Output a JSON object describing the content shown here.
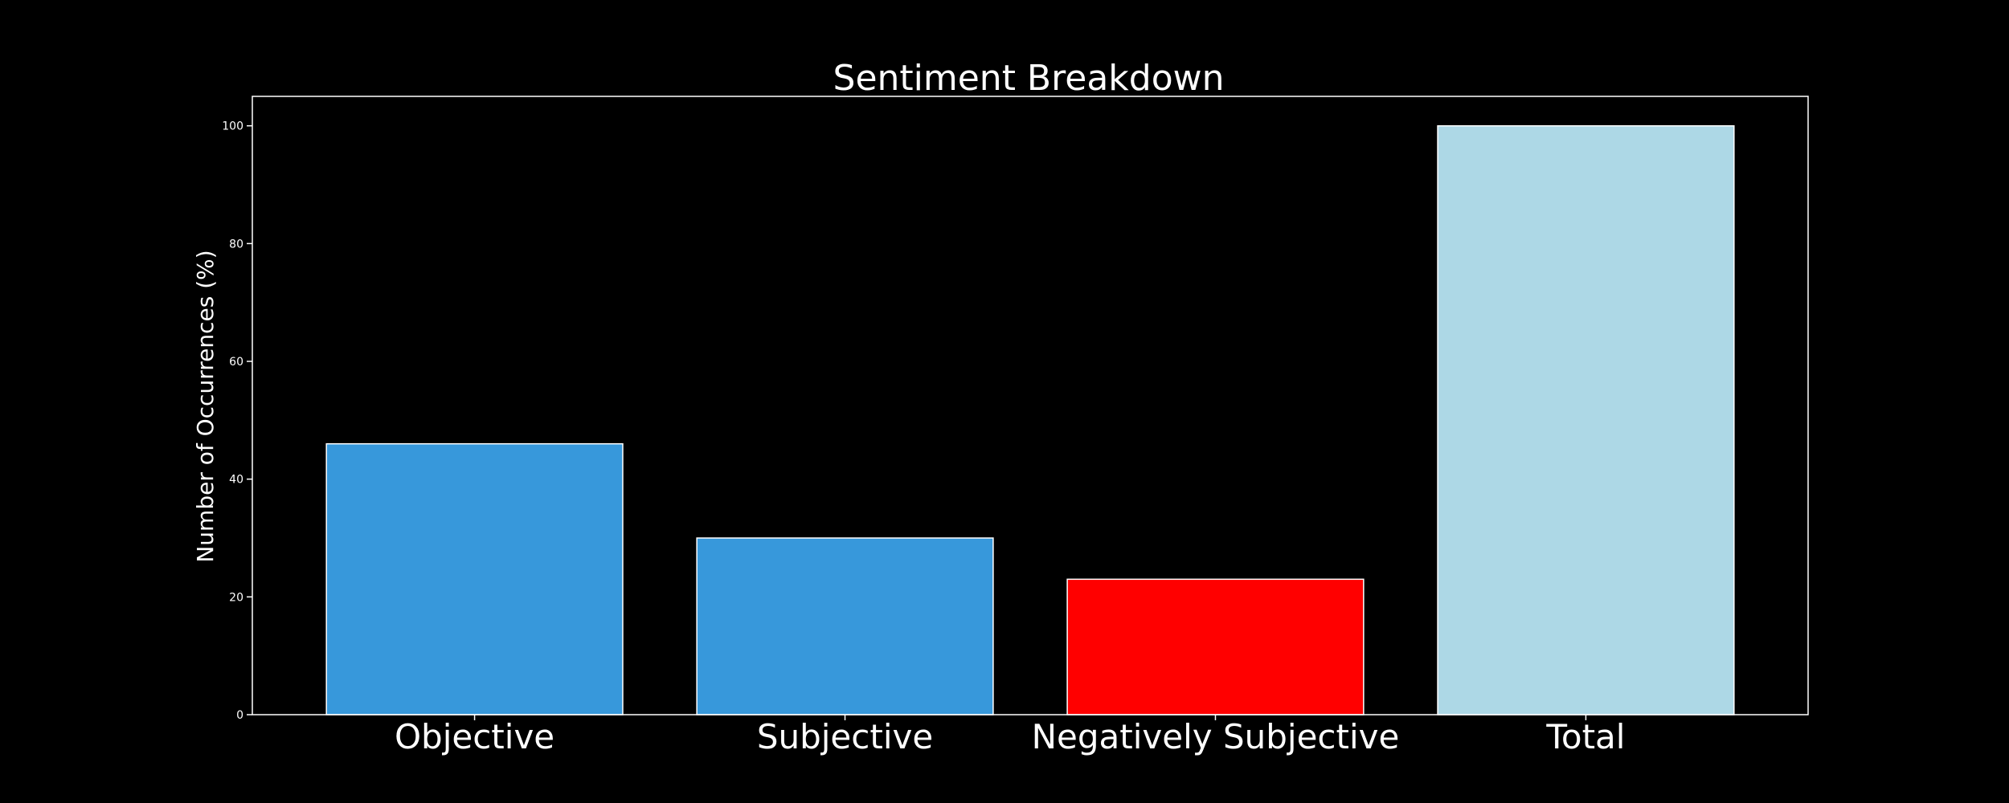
{
  "chart_data": {
    "type": "bar",
    "title": "Sentiment Breakdown",
    "xlabel": "",
    "ylabel": "Number of Occurrences (%)",
    "categories": [
      "Objective",
      "Subjective",
      "Negatively Subjective",
      "Total"
    ],
    "values": [
      46,
      30,
      23,
      100
    ],
    "bar_colors": [
      "#3798db",
      "#3798db",
      "#ff0000",
      "#add8e6"
    ],
    "edge_color": "#ffffff",
    "background_color": "#000000",
    "ylim": [
      0,
      105
    ],
    "yticks": [
      0,
      20,
      40,
      60,
      80,
      100
    ],
    "grid": false,
    "legend": "none"
  }
}
